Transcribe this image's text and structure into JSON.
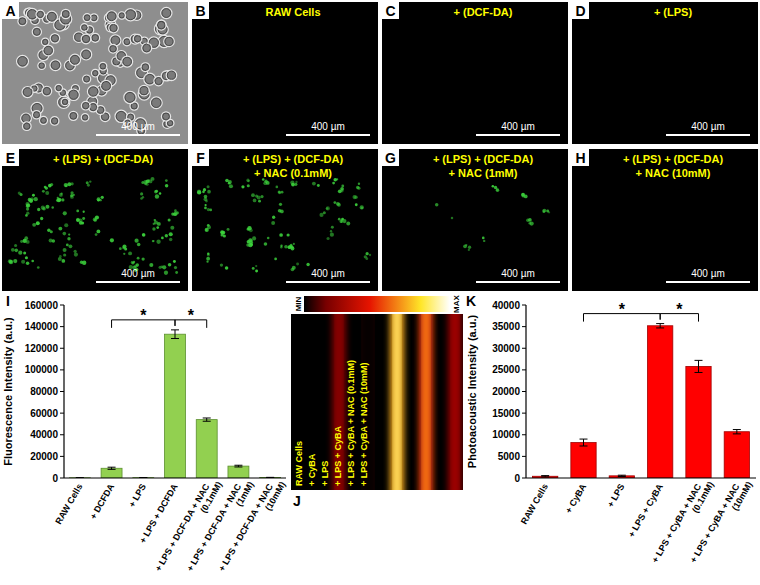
{
  "panels": [
    {
      "label": "A",
      "type": "brightfield"
    },
    {
      "label": "B",
      "type": "fluorescence",
      "title": [
        "RAW Cells"
      ]
    },
    {
      "label": "C",
      "type": "fluorescence",
      "title": [
        "+ (DCF-DA)"
      ]
    },
    {
      "label": "D",
      "type": "fluorescence",
      "title": [
        "+ (LPS)"
      ]
    },
    {
      "label": "E",
      "type": "fluorescence",
      "title": [
        "+ (LPS) + (DCF-DA)"
      ]
    },
    {
      "label": "F",
      "type": "fluorescence",
      "title": [
        "+ (LPS) + (DCF-DA)",
        "+ NAC (0.1mM)"
      ]
    },
    {
      "label": "G",
      "type": "fluorescence",
      "title": [
        "+ (LPS) + (DCF-DA)",
        "+ NAC (1mM)"
      ]
    },
    {
      "label": "H",
      "type": "fluorescence",
      "title": [
        "+ (LPS) + (DCF-DA)",
        "+ NAC (10mM)"
      ]
    }
  ],
  "scale_bar": "400 µm",
  "image_J": {
    "label": "J",
    "min_label": "MIN",
    "max_label": "MAX",
    "lane_labels": [
      "RAW Cells",
      "+ CyBA",
      "+ LPS",
      "+ LPS + CyBA",
      "+ LPS + CyBA + NAC (0.1mM)",
      "+ LPS + CyBA + NAC (10mM)"
    ]
  },
  "chart_data": [
    {
      "type": "bar",
      "panel_label": "I",
      "ylabel": "Fluorescence Intensity (a.u.)",
      "categories": [
        "RAW Cells",
        "+ DCFDA",
        "+ LPS",
        "+ LPS + DCFDA",
        "+ LPS + DCF-DA + NAC (0.1mM)",
        "+ LPS + DCF-DA + NAC (1mM)",
        "+ LPS + DCF-DA + NAC (10mM)"
      ],
      "values": [
        200,
        9000,
        300,
        133000,
        54000,
        11000,
        500
      ],
      "errors": [
        100,
        1000,
        100,
        4000,
        1500,
        800,
        100
      ],
      "color": "#92d050",
      "ylim": [
        0,
        160000
      ],
      "yticks": [
        0,
        20000,
        40000,
        60000,
        80000,
        100000,
        120000,
        140000,
        160000
      ],
      "grid": false,
      "significance": [
        {
          "from": 1,
          "to": 3,
          "label": "*"
        },
        {
          "from": 3,
          "to": 4,
          "label": "*"
        }
      ]
    },
    {
      "type": "bar",
      "panel_label": "K",
      "ylabel": "Photoacoustic Intensity (a.u.)",
      "categories": [
        "RAW Cells",
        "+ CyBA",
        "+ LPS",
        "+ LPS + CyBA",
        "+ LPS + CyBA + NAC (0.1mM)",
        "+ LPS + CyBA + NAC (10mM)"
      ],
      "values": [
        400,
        8200,
        500,
        35200,
        25800,
        10700
      ],
      "errors": [
        150,
        800,
        150,
        500,
        1400,
        500
      ],
      "color": "#ff0000",
      "ylim": [
        0,
        40000
      ],
      "yticks": [
        0,
        5000,
        10000,
        15000,
        20000,
        25000,
        30000,
        35000,
        40000
      ],
      "grid": false,
      "significance": [
        {
          "from": 1,
          "to": 3,
          "label": "*"
        },
        {
          "from": 3,
          "to": 4,
          "label": "*"
        }
      ]
    }
  ]
}
